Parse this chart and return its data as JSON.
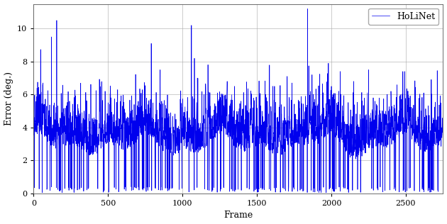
{
  "title": "",
  "xlabel": "Frame",
  "ylabel": "Error (deg.)",
  "xlim": [
    0,
    2750
  ],
  "ylim": [
    0,
    11.5
  ],
  "yticks": [
    0,
    2,
    4,
    6,
    8,
    10
  ],
  "xticks": [
    0,
    500,
    1000,
    1500,
    2000,
    2500
  ],
  "line_color": "#0000ee",
  "line_width": 0.5,
  "legend_label": "HoLiNet",
  "grid_color": "#aaaaaa",
  "grid_linewidth": 0.6,
  "n_frames": 2750,
  "seed": 7
}
